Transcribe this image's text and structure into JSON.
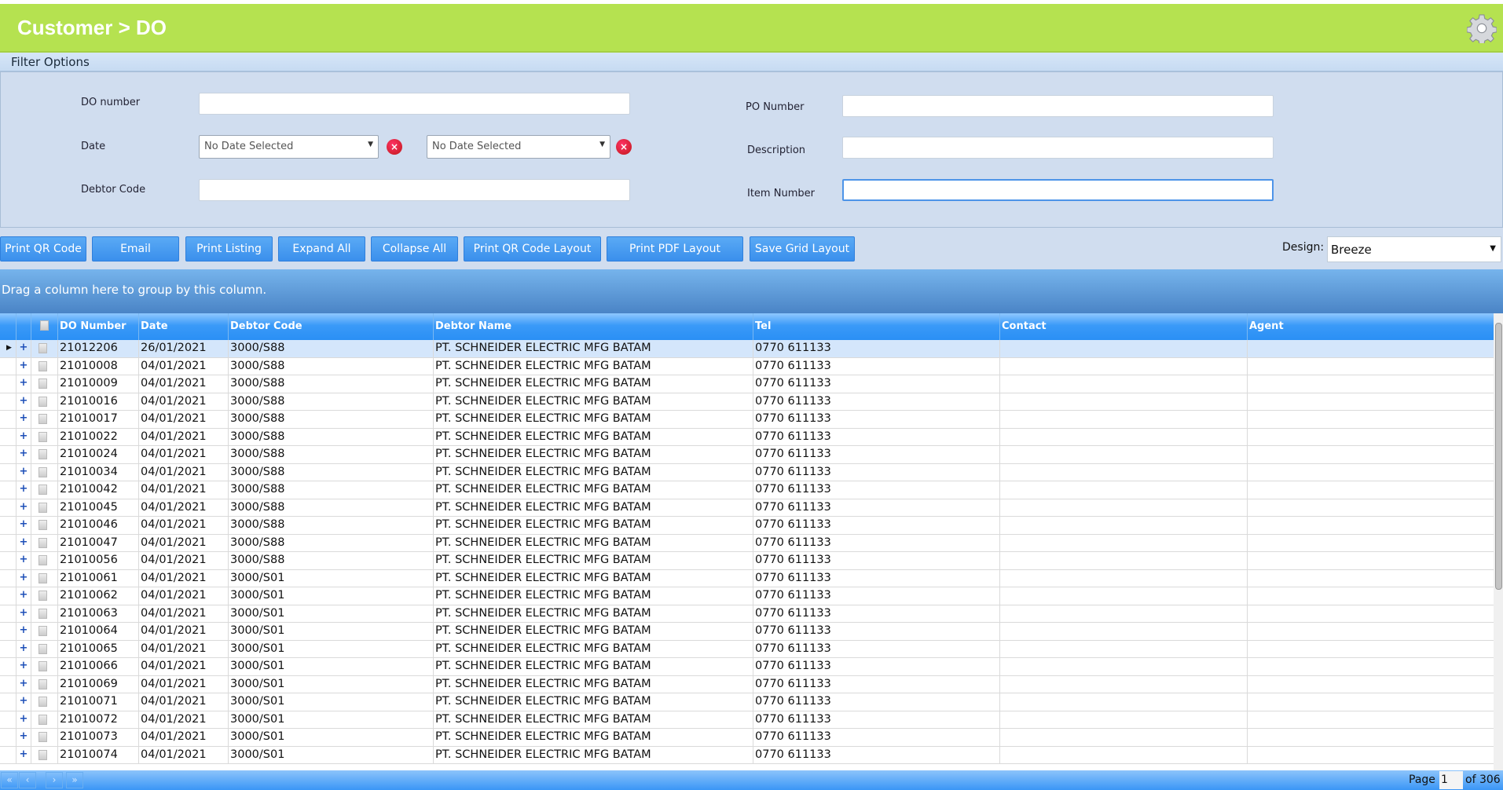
{
  "header": {
    "title": "Customer > DO",
    "settings_icon": "gear-icon"
  },
  "filter": {
    "section_label": "Filter Options",
    "do_number_label": "DO number",
    "do_number_value": "",
    "date_label": "Date",
    "date_from": "No Date Selected",
    "date_to": "No Date Selected",
    "debtor_code_label": "Debtor Code",
    "debtor_code_value": "",
    "po_number_label": "PO Number",
    "po_number_value": "",
    "description_label": "Description",
    "description_value": "",
    "item_number_label": "Item Number",
    "item_number_value": ""
  },
  "toolbar": {
    "buttons": [
      "Print QR Code",
      "Email",
      "Print Listing",
      "Expand All",
      "Collapse All",
      "Print QR Code Layout",
      "Print PDF Layout",
      "Save Grid Layout"
    ],
    "design_label": "Design:",
    "design_value": "Breeze"
  },
  "grid": {
    "group_hint": "Drag a column here to group by this column.",
    "columns": [
      "DO Number",
      "Date",
      "Debtor Code",
      "Debtor Name",
      "Tel",
      "Contact",
      "Agent"
    ],
    "rows": [
      [
        "21012206",
        "26/01/2021",
        "3000/S88",
        "PT. SCHNEIDER ELECTRIC MFG BATAM",
        "0770 611133",
        "",
        ""
      ],
      [
        "21010008",
        "04/01/2021",
        "3000/S88",
        "PT. SCHNEIDER ELECTRIC MFG BATAM",
        "0770 611133",
        "",
        ""
      ],
      [
        "21010009",
        "04/01/2021",
        "3000/S88",
        "PT. SCHNEIDER ELECTRIC MFG BATAM",
        "0770 611133",
        "",
        ""
      ],
      [
        "21010016",
        "04/01/2021",
        "3000/S88",
        "PT. SCHNEIDER ELECTRIC MFG BATAM",
        "0770 611133",
        "",
        ""
      ],
      [
        "21010017",
        "04/01/2021",
        "3000/S88",
        "PT. SCHNEIDER ELECTRIC MFG BATAM",
        "0770 611133",
        "",
        ""
      ],
      [
        "21010022",
        "04/01/2021",
        "3000/S88",
        "PT. SCHNEIDER ELECTRIC MFG BATAM",
        "0770 611133",
        "",
        ""
      ],
      [
        "21010024",
        "04/01/2021",
        "3000/S88",
        "PT. SCHNEIDER ELECTRIC MFG BATAM",
        "0770 611133",
        "",
        ""
      ],
      [
        "21010034",
        "04/01/2021",
        "3000/S88",
        "PT. SCHNEIDER ELECTRIC MFG BATAM",
        "0770 611133",
        "",
        ""
      ],
      [
        "21010042",
        "04/01/2021",
        "3000/S88",
        "PT. SCHNEIDER ELECTRIC MFG BATAM",
        "0770 611133",
        "",
        ""
      ],
      [
        "21010045",
        "04/01/2021",
        "3000/S88",
        "PT. SCHNEIDER ELECTRIC MFG BATAM",
        "0770 611133",
        "",
        ""
      ],
      [
        "21010046",
        "04/01/2021",
        "3000/S88",
        "PT. SCHNEIDER ELECTRIC MFG BATAM",
        "0770 611133",
        "",
        ""
      ],
      [
        "21010047",
        "04/01/2021",
        "3000/S88",
        "PT. SCHNEIDER ELECTRIC MFG BATAM",
        "0770 611133",
        "",
        ""
      ],
      [
        "21010056",
        "04/01/2021",
        "3000/S88",
        "PT. SCHNEIDER ELECTRIC MFG BATAM",
        "0770 611133",
        "",
        ""
      ],
      [
        "21010061",
        "04/01/2021",
        "3000/S01",
        "PT. SCHNEIDER ELECTRIC MFG BATAM",
        "0770 611133",
        "",
        ""
      ],
      [
        "21010062",
        "04/01/2021",
        "3000/S01",
        "PT. SCHNEIDER ELECTRIC MFG BATAM",
        "0770 611133",
        "",
        ""
      ],
      [
        "21010063",
        "04/01/2021",
        "3000/S01",
        "PT. SCHNEIDER ELECTRIC MFG BATAM",
        "0770 611133",
        "",
        ""
      ],
      [
        "21010064",
        "04/01/2021",
        "3000/S01",
        "PT. SCHNEIDER ELECTRIC MFG BATAM",
        "0770 611133",
        "",
        ""
      ],
      [
        "21010065",
        "04/01/2021",
        "3000/S01",
        "PT. SCHNEIDER ELECTRIC MFG BATAM",
        "0770 611133",
        "",
        ""
      ],
      [
        "21010066",
        "04/01/2021",
        "3000/S01",
        "PT. SCHNEIDER ELECTRIC MFG BATAM",
        "0770 611133",
        "",
        ""
      ],
      [
        "21010069",
        "04/01/2021",
        "3000/S01",
        "PT. SCHNEIDER ELECTRIC MFG BATAM",
        "0770 611133",
        "",
        ""
      ],
      [
        "21010071",
        "04/01/2021",
        "3000/S01",
        "PT. SCHNEIDER ELECTRIC MFG BATAM",
        "0770 611133",
        "",
        ""
      ],
      [
        "21010072",
        "04/01/2021",
        "3000/S01",
        "PT. SCHNEIDER ELECTRIC MFG BATAM",
        "0770 611133",
        "",
        ""
      ],
      [
        "21010073",
        "04/01/2021",
        "3000/S01",
        "PT. SCHNEIDER ELECTRIC MFG BATAM",
        "0770 611133",
        "",
        ""
      ],
      [
        "21010074",
        "04/01/2021",
        "3000/S01",
        "PT. SCHNEIDER ELECTRIC MFG BATAM",
        "0770 611133",
        "",
        ""
      ]
    ]
  },
  "pager": {
    "page_label": "Page",
    "page_value": "1",
    "of_label": "of 306"
  }
}
